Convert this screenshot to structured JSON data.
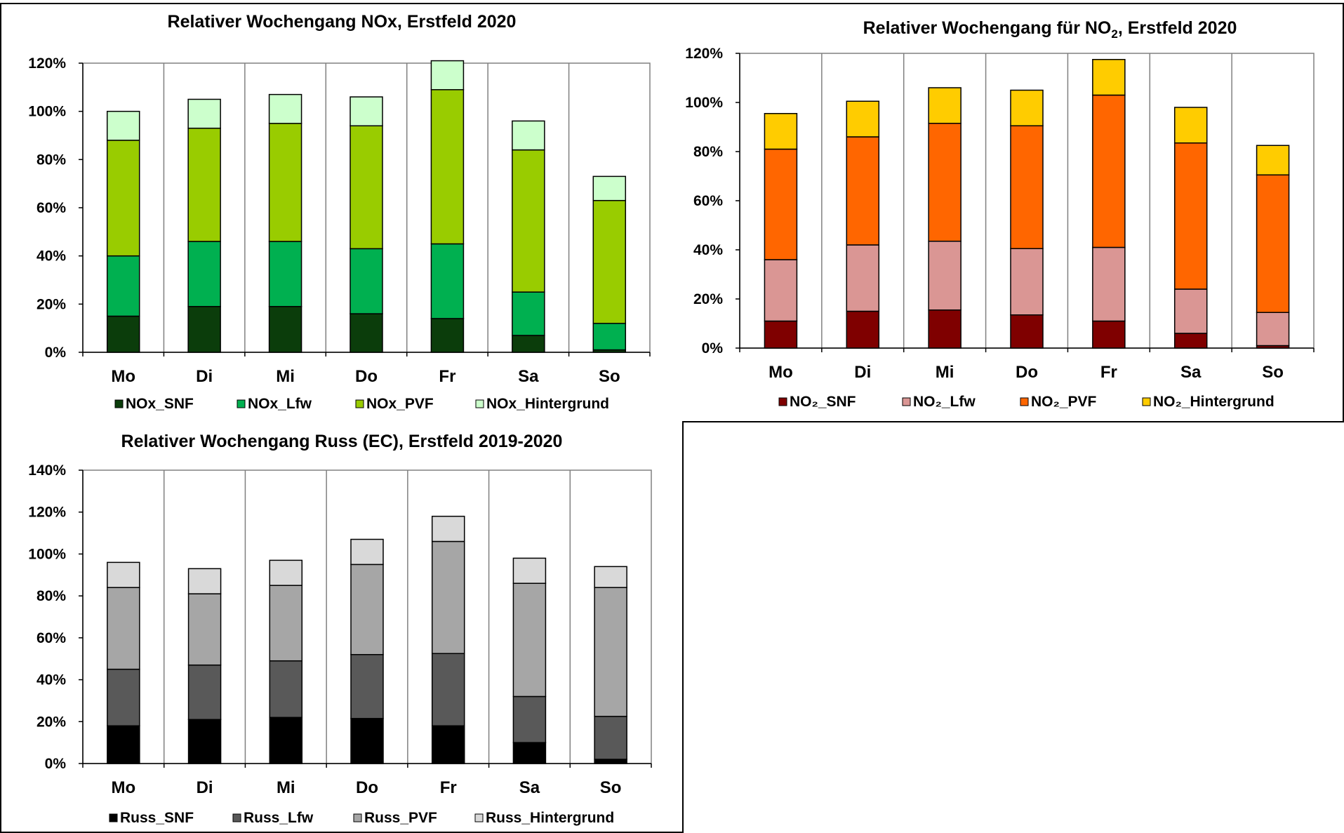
{
  "chart_data": [
    {
      "type": "bar",
      "stacked": true,
      "title": "Relativer Wochengang NOx, Erstfeld 2020",
      "categories": [
        "Mo",
        "Di",
        "Mi",
        "Do",
        "Fr",
        "Sa",
        "So"
      ],
      "ylim": [
        0,
        120
      ],
      "yticks": [
        "0%",
        "20%",
        "40%",
        "60%",
        "80%",
        "100%",
        "120%"
      ],
      "grid": "vertical",
      "legend_position": "bottom",
      "series": [
        {
          "name": "NOx_SNF",
          "color": "#0b3d0b",
          "values": [
            15,
            19,
            19,
            16,
            14,
            7,
            1
          ]
        },
        {
          "name": "NOx_Lfw",
          "color": "#00b050",
          "values": [
            25,
            27,
            27,
            27,
            31,
            18,
            11
          ]
        },
        {
          "name": "NOx_PVF",
          "color": "#99cc00",
          "values": [
            48,
            47,
            49,
            51,
            64,
            59,
            51
          ]
        },
        {
          "name": "NOx_Hintergrund",
          "color": "#ccffcc",
          "values": [
            12,
            12,
            12,
            12,
            12,
            12,
            10
          ]
        }
      ]
    },
    {
      "type": "bar",
      "stacked": true,
      "title": "Relativer Wochengang für NO",
      "title_sub": "2",
      "title_suffix": ", Erstfeld 2020",
      "categories": [
        "Mo",
        "Di",
        "Mi",
        "Do",
        "Fr",
        "Sa",
        "So"
      ],
      "ylim": [
        0,
        120
      ],
      "yticks": [
        "0%",
        "20%",
        "40%",
        "60%",
        "80%",
        "100%",
        "120%"
      ],
      "grid": "vertical",
      "legend_position": "bottom",
      "series": [
        {
          "name": "NO₂_SNF",
          "color": "#7f0000",
          "values": [
            11,
            15,
            15.5,
            13.5,
            11,
            6,
            1
          ]
        },
        {
          "name": "NO₂_Lfw",
          "color": "#da9694",
          "values": [
            25,
            27,
            28,
            27,
            30,
            18,
            13.5
          ]
        },
        {
          "name": "NO₂_PVF",
          "color": "#ff6600",
          "values": [
            45,
            44,
            48,
            50,
            62,
            59.5,
            56
          ]
        },
        {
          "name": "NO₂_Hintergrund",
          "color": "#ffcc00",
          "values": [
            14.5,
            14.5,
            14.5,
            14.5,
            14.5,
            14.5,
            12
          ]
        }
      ]
    },
    {
      "type": "bar",
      "stacked": true,
      "title": "Relativer Wochengang Russ (EC), Erstfeld 2019-2020",
      "categories": [
        "Mo",
        "Di",
        "Mi",
        "Do",
        "Fr",
        "Sa",
        "So"
      ],
      "ylim": [
        0,
        140
      ],
      "yticks": [
        "0%",
        "20%",
        "40%",
        "60%",
        "80%",
        "100%",
        "120%",
        "140%"
      ],
      "grid": "vertical",
      "legend_position": "bottom",
      "series": [
        {
          "name": "Russ_SNF",
          "color": "#000000",
          "values": [
            18,
            21,
            22,
            21.5,
            18,
            10,
            2
          ]
        },
        {
          "name": "Russ_Lfw",
          "color": "#595959",
          "values": [
            27,
            26,
            27,
            30.5,
            34.5,
            22,
            20.5
          ]
        },
        {
          "name": "Russ_PVF",
          "color": "#a6a6a6",
          "values": [
            39,
            34,
            36,
            43,
            53.5,
            54,
            61.5
          ]
        },
        {
          "name": "Russ_Hintergrund",
          "color": "#d9d9d9",
          "values": [
            12,
            12,
            12,
            12,
            12,
            12,
            10
          ]
        }
      ]
    }
  ]
}
